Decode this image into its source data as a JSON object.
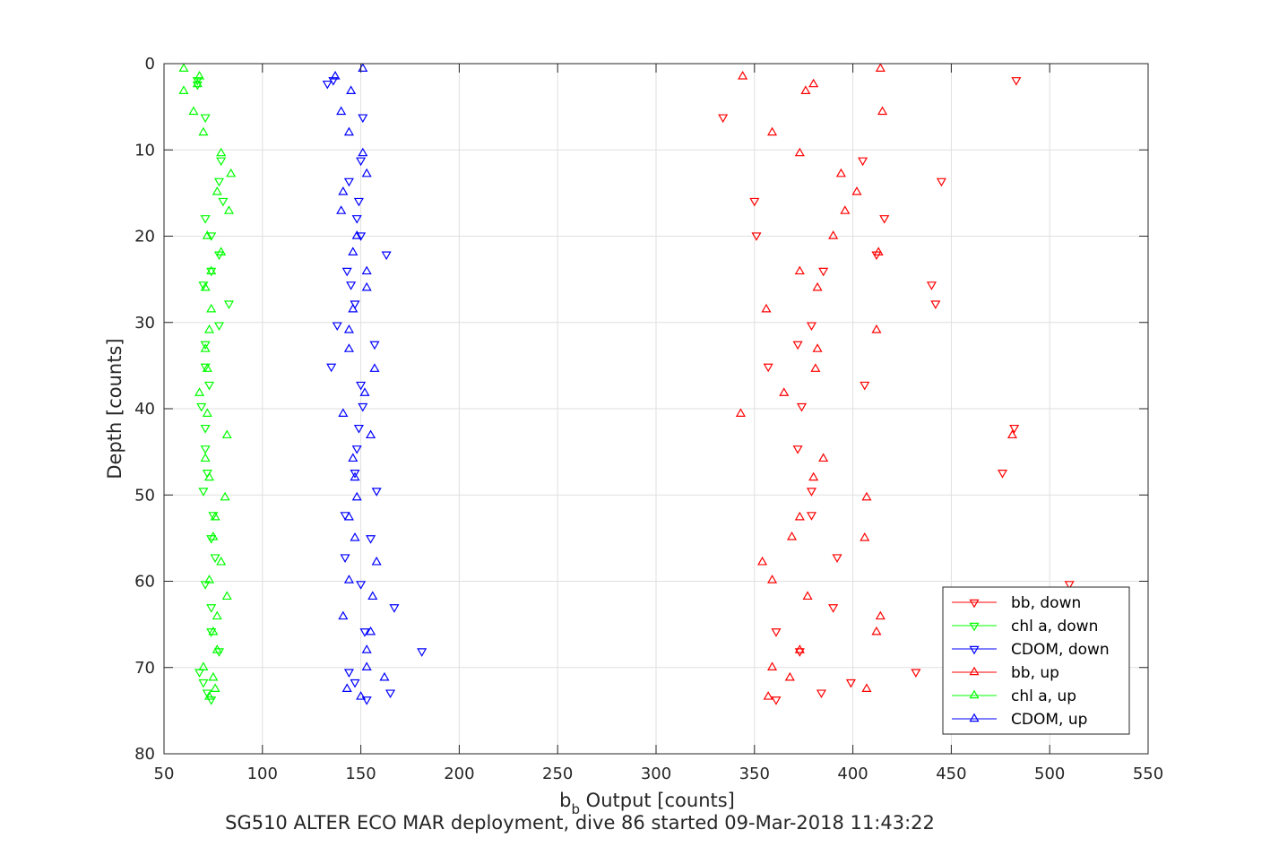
{
  "chart_data": {
    "type": "scatter",
    "title": "",
    "caption": "SG510 ALTER ECO MAR deployment, dive 86 started 09-Mar-2018 11:43:22",
    "xlabel_main": "b",
    "xlabel_sub": "b",
    "xlabel_rest": " Output [counts]",
    "ylabel": "Depth [counts]",
    "xlim": [
      50,
      550
    ],
    "ylim": [
      0,
      80
    ],
    "y_reversed": true,
    "xticks": [
      50,
      100,
      150,
      200,
      250,
      300,
      350,
      400,
      450,
      500,
      550
    ],
    "yticks": [
      0,
      10,
      20,
      30,
      40,
      50,
      60,
      70,
      80
    ],
    "grid": true,
    "legend_position": "bottom-right",
    "series": [
      {
        "name": "bb, down",
        "color": "#ff0000",
        "marker": "triangle-down",
        "points": [
          [
            483,
            1.9
          ],
          [
            334,
            6.2
          ],
          [
            405,
            11.2
          ],
          [
            445,
            13.6
          ],
          [
            350,
            15.9
          ],
          [
            416,
            17.9
          ],
          [
            351,
            19.9
          ],
          [
            412,
            22.1
          ],
          [
            385,
            24
          ],
          [
            440,
            25.6
          ],
          [
            442,
            27.8
          ],
          [
            379,
            30.3
          ],
          [
            372,
            32.5
          ],
          [
            357,
            35.1
          ],
          [
            406,
            37.2
          ],
          [
            374,
            39.7
          ],
          [
            482,
            42.2
          ],
          [
            372,
            44.6
          ],
          [
            476,
            47.4
          ],
          [
            379,
            49.5
          ],
          [
            379,
            52.3
          ],
          [
            392,
            57.2
          ],
          [
            510,
            60.3
          ],
          [
            390,
            63
          ],
          [
            361,
            65.8
          ],
          [
            373,
            68.1
          ],
          [
            432,
            70.5
          ],
          [
            399,
            71.7
          ],
          [
            384,
            72.9
          ],
          [
            361,
            73.7
          ]
        ]
      },
      {
        "name": "chl a, down",
        "color": "#00ff00",
        "marker": "triangle-down",
        "points": [
          [
            67,
            1.9
          ],
          [
            67,
            2.4
          ],
          [
            71,
            6.2
          ],
          [
            79,
            11.2
          ],
          [
            78,
            13.6
          ],
          [
            80,
            15.9
          ],
          [
            71,
            17.9
          ],
          [
            74,
            19.9
          ],
          [
            78,
            22.1
          ],
          [
            74,
            24
          ],
          [
            70,
            25.6
          ],
          [
            83,
            27.8
          ],
          [
            78,
            30.3
          ],
          [
            71,
            32.5
          ],
          [
            71,
            35.1
          ],
          [
            73,
            37.2
          ],
          [
            69,
            39.7
          ],
          [
            71,
            42.2
          ],
          [
            71,
            44.6
          ],
          [
            72,
            47.4
          ],
          [
            70,
            49.5
          ],
          [
            75,
            52.3
          ],
          [
            74,
            55
          ],
          [
            76,
            57.2
          ],
          [
            71,
            60.3
          ],
          [
            74,
            63
          ],
          [
            74,
            65.8
          ],
          [
            78,
            68.1
          ],
          [
            68,
            70.5
          ],
          [
            70,
            71.7
          ],
          [
            72,
            72.9
          ],
          [
            74,
            73.7
          ]
        ]
      },
      {
        "name": "CDOM, down",
        "color": "#0000ff",
        "marker": "triangle-down",
        "points": [
          [
            133,
            2.3
          ],
          [
            136,
            1.9
          ],
          [
            151,
            6.2
          ],
          [
            150,
            11.2
          ],
          [
            144,
            13.6
          ],
          [
            149,
            15.9
          ],
          [
            148,
            17.9
          ],
          [
            150,
            19.9
          ],
          [
            163,
            22.1
          ],
          [
            143,
            24
          ],
          [
            145,
            25.6
          ],
          [
            147,
            27.8
          ],
          [
            138,
            30.3
          ],
          [
            157,
            32.5
          ],
          [
            135,
            35.1
          ],
          [
            150,
            37.2
          ],
          [
            151,
            39.7
          ],
          [
            149,
            42.2
          ],
          [
            148,
            44.6
          ],
          [
            147,
            47.4
          ],
          [
            158,
            49.5
          ],
          [
            142,
            52.3
          ],
          [
            155,
            55
          ],
          [
            142,
            57.2
          ],
          [
            150,
            60.3
          ],
          [
            167,
            63
          ],
          [
            152,
            65.8
          ],
          [
            181,
            68.1
          ],
          [
            144,
            70.5
          ],
          [
            147,
            71.7
          ],
          [
            165,
            72.9
          ],
          [
            153,
            73.7
          ]
        ]
      },
      {
        "name": "bb, up",
        "color": "#ff0000",
        "marker": "triangle-up",
        "points": [
          [
            414,
            0.6
          ],
          [
            344,
            1.5
          ],
          [
            380,
            2.4
          ],
          [
            376,
            3.2
          ],
          [
            415,
            5.6
          ],
          [
            359,
            8
          ],
          [
            373,
            10.4
          ],
          [
            394,
            12.8
          ],
          [
            402,
            14.9
          ],
          [
            396,
            17.1
          ],
          [
            390,
            20
          ],
          [
            413,
            21.9
          ],
          [
            373,
            24.1
          ],
          [
            382,
            26
          ],
          [
            356,
            28.5
          ],
          [
            412,
            30.9
          ],
          [
            382,
            33.1
          ],
          [
            381,
            35.4
          ],
          [
            365,
            38.2
          ],
          [
            343,
            40.6
          ],
          [
            481,
            43.1
          ],
          [
            385,
            45.8
          ],
          [
            380,
            48
          ],
          [
            407,
            50.3
          ],
          [
            373,
            52.6
          ],
          [
            369,
            54.9
          ],
          [
            406,
            55
          ],
          [
            354,
            57.8
          ],
          [
            359,
            59.9
          ],
          [
            377,
            61.8
          ],
          [
            414,
            64.1
          ],
          [
            412,
            65.9
          ],
          [
            373,
            68
          ],
          [
            359,
            70
          ],
          [
            368,
            71.2
          ],
          [
            407,
            72.5
          ],
          [
            357,
            73.4
          ]
        ]
      },
      {
        "name": "chl a, up",
        "color": "#00ff00",
        "marker": "triangle-up",
        "points": [
          [
            60,
            0.6
          ],
          [
            68,
            1.5
          ],
          [
            67,
            2.4
          ],
          [
            60,
            3.2
          ],
          [
            65,
            5.6
          ],
          [
            70,
            8
          ],
          [
            79,
            10.4
          ],
          [
            84,
            12.8
          ],
          [
            77,
            14.9
          ],
          [
            83,
            17.1
          ],
          [
            72,
            20
          ],
          [
            79,
            21.9
          ],
          [
            74,
            24.1
          ],
          [
            71,
            26
          ],
          [
            74,
            28.5
          ],
          [
            73,
            30.9
          ],
          [
            71,
            33.1
          ],
          [
            72,
            35.4
          ],
          [
            68,
            38.2
          ],
          [
            72,
            40.6
          ],
          [
            82,
            43.1
          ],
          [
            71,
            45.8
          ],
          [
            73,
            48
          ],
          [
            81,
            50.3
          ],
          [
            76,
            52.6
          ],
          [
            75,
            54.9
          ],
          [
            79,
            57.8
          ],
          [
            73,
            59.9
          ],
          [
            82,
            61.8
          ],
          [
            77,
            64.1
          ],
          [
            75,
            65.9
          ],
          [
            77,
            68
          ],
          [
            70,
            70
          ],
          [
            75,
            71.2
          ],
          [
            76,
            72.5
          ],
          [
            73,
            73.4
          ]
        ]
      },
      {
        "name": "CDOM, up",
        "color": "#0000ff",
        "marker": "triangle-up",
        "points": [
          [
            151,
            0.6
          ],
          [
            137,
            1.5
          ],
          [
            145,
            3.2
          ],
          [
            140,
            5.6
          ],
          [
            144,
            8
          ],
          [
            151,
            10.4
          ],
          [
            153,
            12.8
          ],
          [
            141,
            14.9
          ],
          [
            140,
            17.1
          ],
          [
            148,
            20
          ],
          [
            146,
            21.9
          ],
          [
            153,
            24.1
          ],
          [
            153,
            26
          ],
          [
            146,
            28.5
          ],
          [
            144,
            30.9
          ],
          [
            144,
            33.1
          ],
          [
            157,
            35.4
          ],
          [
            152,
            38.2
          ],
          [
            141,
            40.6
          ],
          [
            155,
            43.1
          ],
          [
            146,
            45.8
          ],
          [
            147,
            48
          ],
          [
            148,
            50.3
          ],
          [
            144,
            52.6
          ],
          [
            147,
            55
          ],
          [
            158,
            57.8
          ],
          [
            144,
            59.9
          ],
          [
            156,
            61.8
          ],
          [
            141,
            64.1
          ],
          [
            155,
            65.9
          ],
          [
            153,
            68
          ],
          [
            153,
            70
          ],
          [
            162,
            71.2
          ],
          [
            143,
            72.5
          ],
          [
            150,
            73.4
          ]
        ]
      }
    ]
  }
}
